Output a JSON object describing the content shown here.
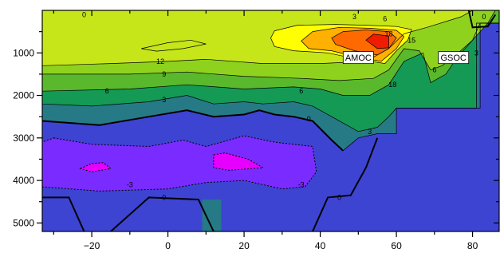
{
  "chart_data": {
    "type": "contour",
    "title": "",
    "xlabel": "",
    "ylabel": "",
    "xlim": [
      -33,
      87
    ],
    "ylim": [
      5200,
      0
    ],
    "x_ticks": [
      -20,
      0,
      20,
      40,
      60,
      80
    ],
    "y_ticks": [
      1000,
      2000,
      3000,
      4000,
      5000
    ],
    "contour_levels": [
      -6,
      -3,
      0,
      3,
      6,
      9,
      12,
      15,
      18,
      21,
      24
    ],
    "contour_labels": [
      {
        "text": "0",
        "x": -22,
        "y": 100
      },
      {
        "text": "3",
        "x": 49,
        "y": 150
      },
      {
        "text": "6",
        "x": 57,
        "y": 200
      },
      {
        "text": "0",
        "x": 83,
        "y": 150
      },
      {
        "text": "18",
        "x": 58,
        "y": 550
      },
      {
        "text": "15",
        "x": 64,
        "y": 700
      },
      {
        "text": "12",
        "x": -2,
        "y": 1200
      },
      {
        "text": "9",
        "x": -1,
        "y": 1500
      },
      {
        "text": "6",
        "x": -16,
        "y": 1900
      },
      {
        "text": "3",
        "x": -1,
        "y": 2100
      },
      {
        "text": "6",
        "x": 35,
        "y": 1900
      },
      {
        "text": "6",
        "x": 70,
        "y": 1400
      },
      {
        "text": "3",
        "x": 81,
        "y": 1000
      },
      {
        "text": "18",
        "x": 59,
        "y": 1750
      },
      {
        "text": "0",
        "x": 37,
        "y": 2550
      },
      {
        "text": "3",
        "x": 53,
        "y": 2850
      },
      {
        "text": "-3",
        "x": -10,
        "y": 4100
      },
      {
        "text": "-3",
        "x": 35,
        "y": 4100
      },
      {
        "text": "0",
        "x": -1,
        "y": 4400
      },
      {
        "text": "0",
        "x": 45,
        "y": 4400
      }
    ],
    "annotations": [
      {
        "text": "AMOC",
        "x": 50,
        "y": 1120
      },
      {
        "text": "GSOC",
        "x": 75,
        "y": 1120
      }
    ],
    "colors": {
      "neg6": "#e600ff",
      "neg3": "#7a2bff",
      "zero": "#3d44d2",
      "pos0": "#267a86",
      "pos3": "#149a55",
      "pos6": "#5ab82c",
      "pos9": "#8fd21e",
      "pos12": "#c6e61a",
      "pos15": "#ffff00",
      "pos18": "#ffb000",
      "pos21": "#ff6a00",
      "pos24": "#ee1c00"
    }
  }
}
